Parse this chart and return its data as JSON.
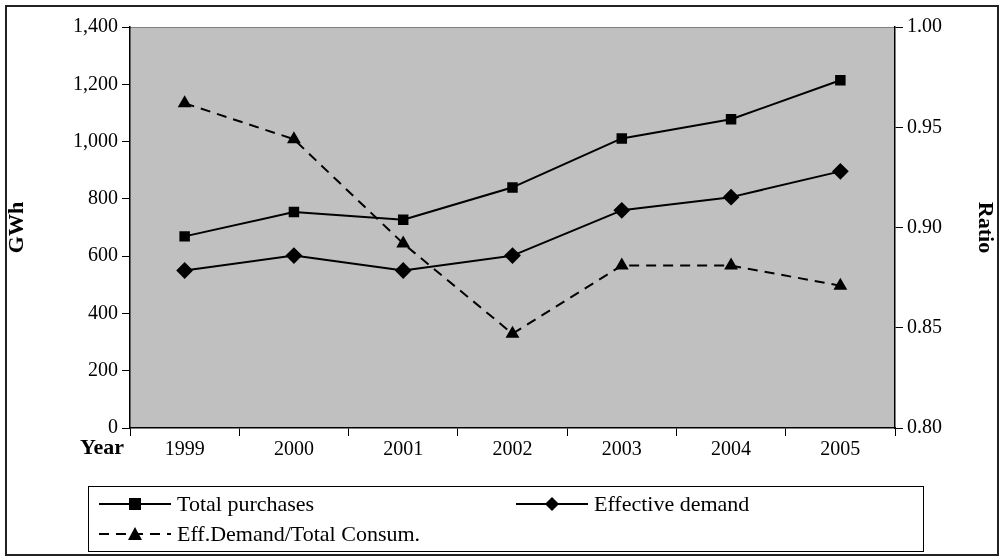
{
  "chart_data": {
    "type": "line",
    "xlabel": "Year",
    "ylabel": "GWh",
    "y2label": "Ratio",
    "categories": [
      "1999",
      "2000",
      "2001",
      "2002",
      "2003",
      "2004",
      "2005"
    ],
    "series": [
      {
        "name": "Total purchases",
        "color": "#000000",
        "marker": "square",
        "line_style": "solid",
        "values": [
          669,
          754,
          727,
          840,
          1011,
          1078,
          1214
        ]
      },
      {
        "name": "Effective demand",
        "color": "#000000",
        "marker": "diamond",
        "line_style": "solid",
        "values": [
          550,
          602,
          550,
          602,
          760,
          806,
          896
        ]
      },
      {
        "name": "Eff.Demand/Total Consum.",
        "color": "#000000",
        "marker": "triangle",
        "line_style": "dashed",
        "axis": "y2",
        "values": [
          0.962,
          0.944,
          0.892,
          0.847,
          0.881,
          0.881,
          0.871
        ]
      }
    ],
    "ylim": [
      0,
      1400
    ],
    "yticks": [
      0,
      200,
      400,
      600,
      800,
      {
        "value": 1000,
        "label": "1,000"
      },
      {
        "value": 1200,
        "label": "1,200"
      },
      {
        "value": 1400,
        "label": "1,400"
      }
    ],
    "y2lim": [
      0.8,
      1
    ],
    "y2ticks": [
      {
        "value": 0.8,
        "label": "0.80"
      },
      {
        "value": 0.85,
        "label": "0.85"
      },
      {
        "value": 0.9,
        "label": "0.90"
      },
      {
        "value": 0.95,
        "label": "0.95"
      },
      {
        "value": 1,
        "label": "1.00"
      }
    ],
    "legend": "bottom"
  }
}
